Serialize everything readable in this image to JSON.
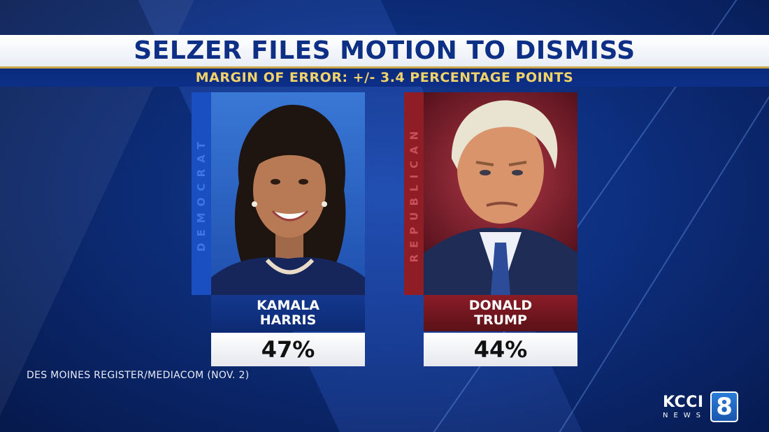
{
  "headline": "SELZER FILES MOTION TO DISMISS",
  "subheadline": "MARGIN OF ERROR: +/- 3.4 PERCENTAGE POINTS",
  "candidates": [
    {
      "party": "DEMOCRAT",
      "first_name": "KAMALA",
      "last_name": "HARRIS",
      "percent": "47%",
      "color": "#1a4fc2",
      "photo": "portrait-woman-icon"
    },
    {
      "party": "REPUBLICAN",
      "first_name": "DONALD",
      "last_name": "TRUMP",
      "percent": "44%",
      "color": "#8f1d26",
      "photo": "portrait-man-icon"
    }
  ],
  "source": "DES MOINES REGISTER/MEDIACOM (NOV. 2)",
  "logo": {
    "call_letters": "KCCI",
    "news_label": "NEWS",
    "channel": "8"
  }
}
